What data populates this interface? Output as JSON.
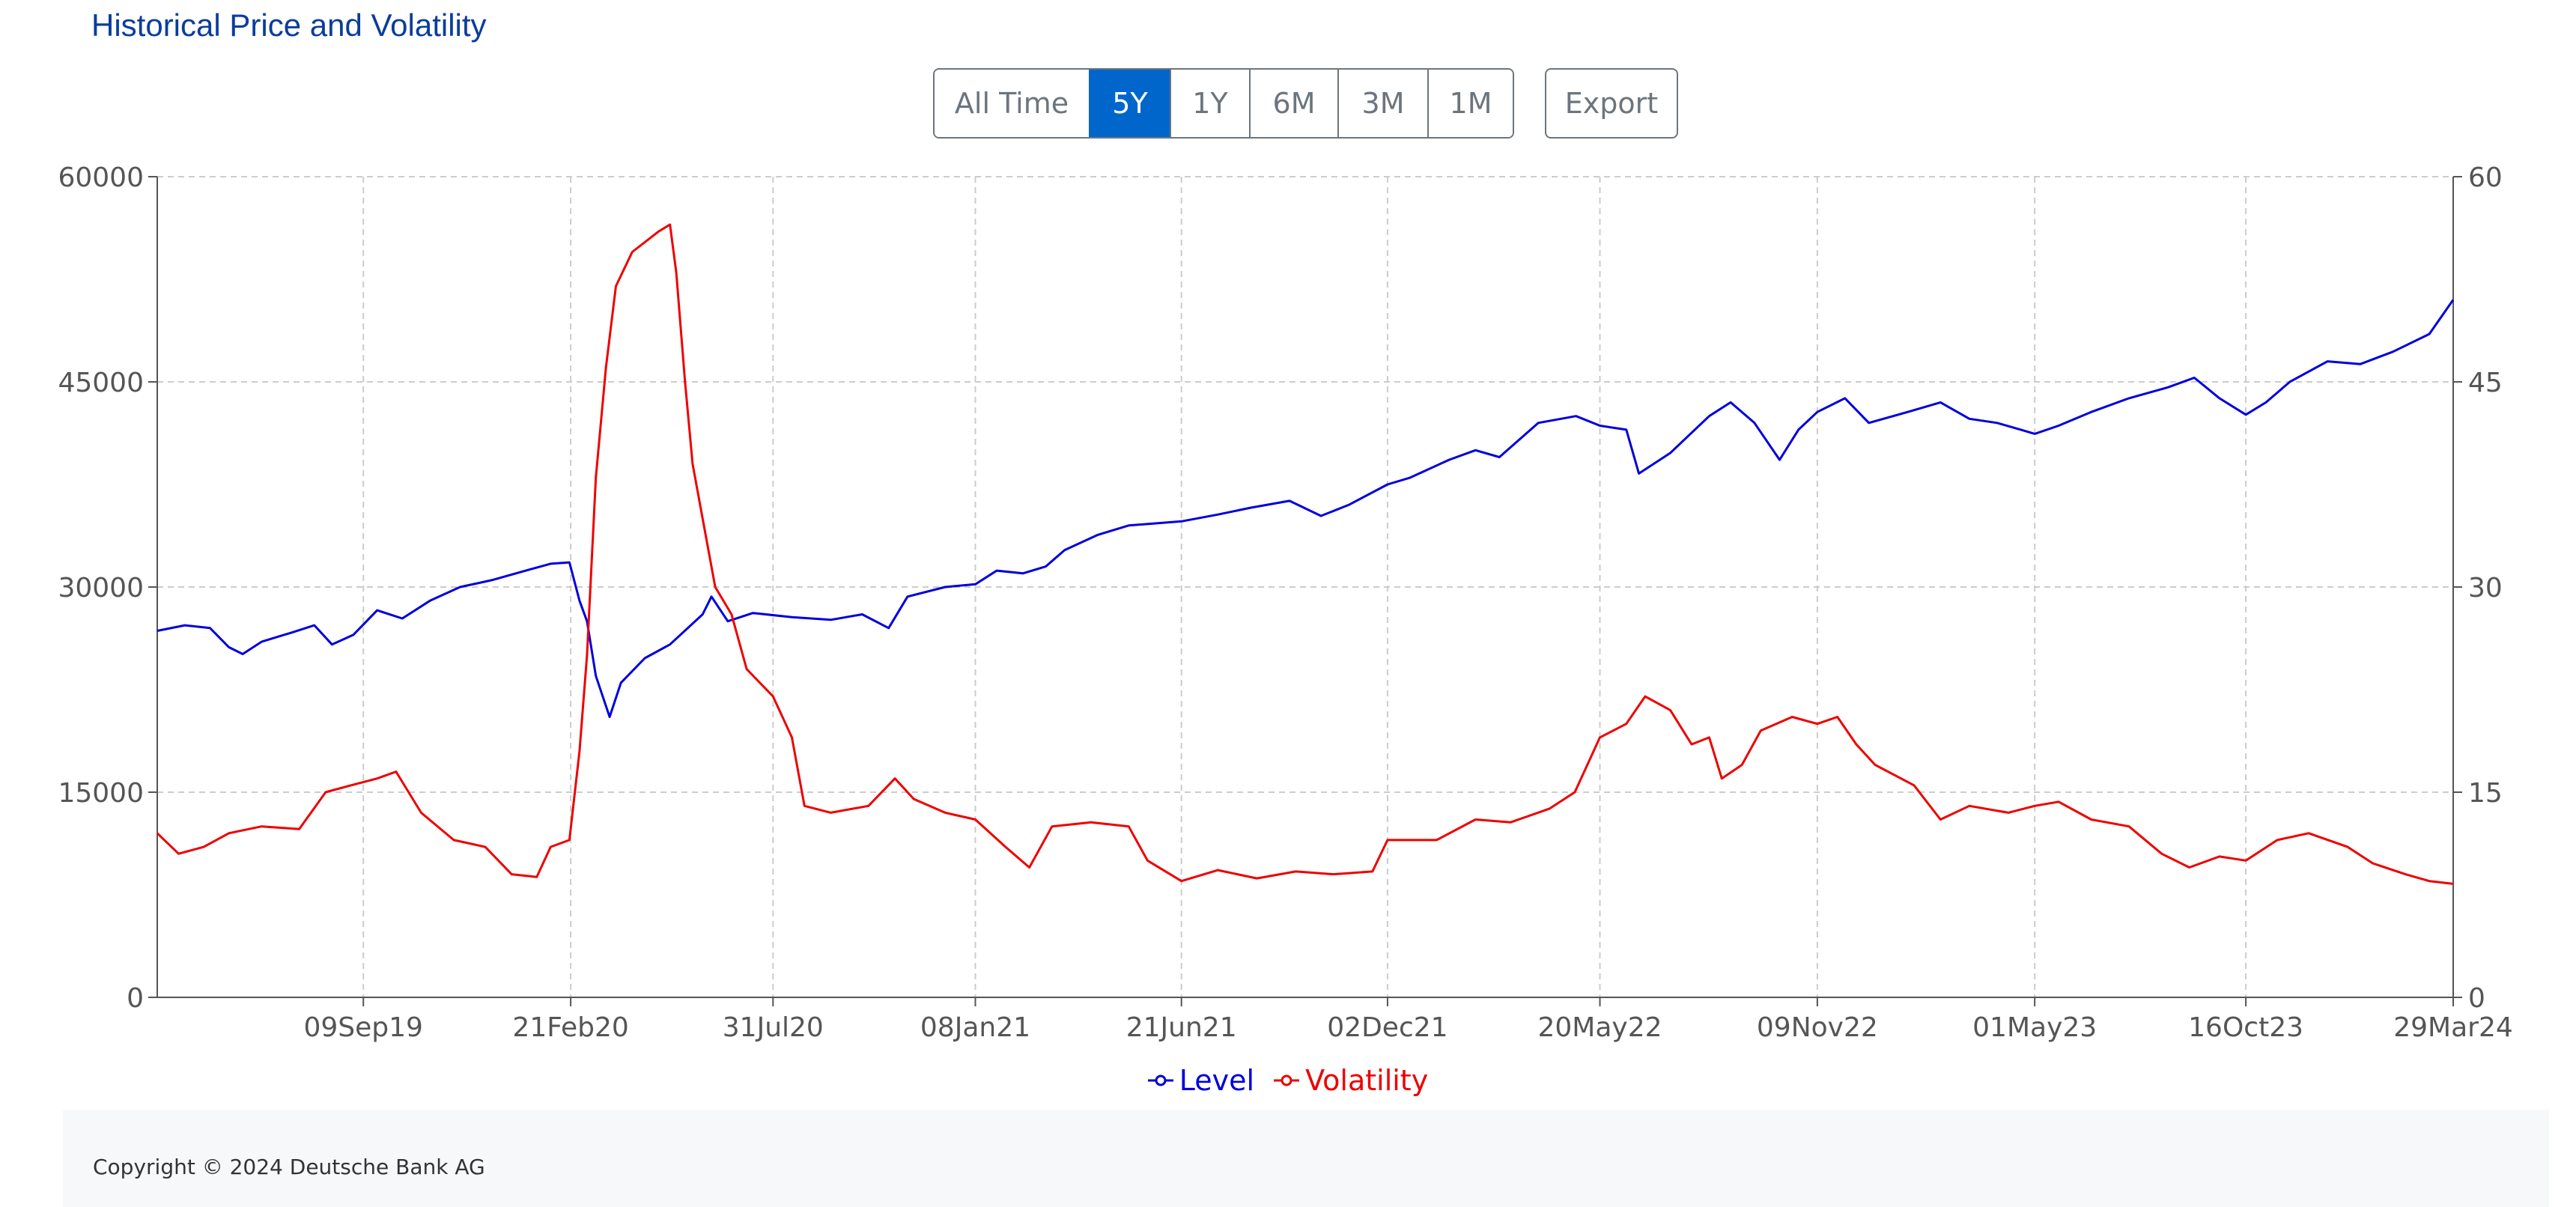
{
  "header": {
    "title": "Historical Price and Volatility"
  },
  "range_buttons": [
    {
      "label": "All Time",
      "active": false
    },
    {
      "label": "5Y",
      "active": true
    },
    {
      "label": "1Y",
      "active": false
    },
    {
      "label": "6M",
      "active": false
    },
    {
      "label": "3M",
      "active": false
    },
    {
      "label": "1M",
      "active": false
    }
  ],
  "export_label": "Export",
  "footer": {
    "copyright": "Copyright © 2024 Deutsche Bank AG"
  },
  "colors": {
    "level": "#0000dd",
    "volatility": "#ee0000",
    "grid": "#cccccc",
    "axis": "#555555",
    "active_button": "#0066cc"
  },
  "chart_data": {
    "type": "line",
    "title": "",
    "xlabel": "",
    "ylabel_left": "",
    "ylabel_right": "",
    "x_range": [
      "2019-03-29",
      "2024-03-29"
    ],
    "x_tick_labels": [
      "09Sep19",
      "21Feb20",
      "31Jul20",
      "08Jan21",
      "21Jun21",
      "02Dec21",
      "20May22",
      "09Nov22",
      "01May23",
      "16Oct23",
      "29Mar24"
    ],
    "x_tick_dates": [
      "2019-09-09",
      "2020-02-21",
      "2020-07-31",
      "2021-01-08",
      "2021-06-21",
      "2021-12-02",
      "2022-05-20",
      "2022-11-09",
      "2023-05-01",
      "2023-10-16",
      "2024-03-29"
    ],
    "y_left": {
      "range": [
        0,
        60000
      ],
      "ticks": [
        "0",
        "15000",
        "30000",
        "45000",
        "60000"
      ]
    },
    "y_right": {
      "range": [
        0,
        60
      ],
      "ticks": [
        "0",
        "15",
        "30",
        "45",
        "60"
      ]
    },
    "grid": true,
    "legend_position": "bottom-center",
    "series": [
      {
        "name": "Level",
        "axis": "left",
        "color": "#0000dd",
        "points": [
          [
            "2019-03-29",
            26800
          ],
          [
            "2019-04-20",
            27200
          ],
          [
            "2019-05-10",
            27000
          ],
          [
            "2019-05-25",
            25600
          ],
          [
            "2019-06-05",
            25100
          ],
          [
            "2019-06-20",
            26000
          ],
          [
            "2019-07-15",
            26700
          ],
          [
            "2019-08-01",
            27200
          ],
          [
            "2019-08-15",
            25800
          ],
          [
            "2019-09-01",
            26500
          ],
          [
            "2019-09-20",
            28300
          ],
          [
            "2019-10-10",
            27700
          ],
          [
            "2019-11-01",
            29000
          ],
          [
            "2019-11-25",
            30000
          ],
          [
            "2019-12-20",
            30500
          ],
          [
            "2020-01-20",
            31300
          ],
          [
            "2020-02-05",
            31700
          ],
          [
            "2020-02-20",
            31800
          ],
          [
            "2020-02-28",
            29000
          ],
          [
            "2020-03-05",
            27500
          ],
          [
            "2020-03-12",
            23500
          ],
          [
            "2020-03-23",
            20500
          ],
          [
            "2020-04-01",
            23000
          ],
          [
            "2020-04-20",
            24800
          ],
          [
            "2020-05-10",
            25800
          ],
          [
            "2020-06-05",
            28000
          ],
          [
            "2020-06-12",
            29300
          ],
          [
            "2020-06-25",
            27500
          ],
          [
            "2020-07-15",
            28100
          ],
          [
            "2020-08-15",
            27800
          ],
          [
            "2020-09-15",
            27600
          ],
          [
            "2020-10-10",
            28000
          ],
          [
            "2020-10-31",
            27000
          ],
          [
            "2020-11-15",
            29300
          ],
          [
            "2020-12-15",
            30000
          ],
          [
            "2021-01-08",
            30200
          ],
          [
            "2021-01-25",
            31200
          ],
          [
            "2021-02-15",
            31000
          ],
          [
            "2021-03-05",
            31500
          ],
          [
            "2021-03-20",
            32700
          ],
          [
            "2021-04-15",
            33800
          ],
          [
            "2021-05-10",
            34500
          ],
          [
            "2021-06-21",
            34800
          ],
          [
            "2021-07-20",
            35300
          ],
          [
            "2021-08-15",
            35800
          ],
          [
            "2021-09-15",
            36300
          ],
          [
            "2021-10-10",
            35200
          ],
          [
            "2021-11-01",
            36000
          ],
          [
            "2021-12-02",
            37500
          ],
          [
            "2021-12-20",
            38000
          ],
          [
            "2022-01-20",
            39300
          ],
          [
            "2022-02-10",
            40000
          ],
          [
            "2022-03-01",
            39500
          ],
          [
            "2022-04-01",
            42000
          ],
          [
            "2022-05-01",
            42500
          ],
          [
            "2022-05-20",
            41800
          ],
          [
            "2022-06-10",
            41500
          ],
          [
            "2022-06-20",
            38300
          ],
          [
            "2022-07-15",
            39800
          ],
          [
            "2022-08-15",
            42500
          ],
          [
            "2022-09-01",
            43500
          ],
          [
            "2022-09-20",
            42000
          ],
          [
            "2022-10-10",
            39300
          ],
          [
            "2022-10-25",
            41500
          ],
          [
            "2022-11-09",
            42800
          ],
          [
            "2022-12-01",
            43800
          ],
          [
            "2022-12-20",
            42000
          ],
          [
            "2023-01-20",
            42800
          ],
          [
            "2023-02-15",
            43500
          ],
          [
            "2023-03-10",
            42300
          ],
          [
            "2023-04-01",
            42000
          ],
          [
            "2023-04-20",
            41500
          ],
          [
            "2023-05-01",
            41200
          ],
          [
            "2023-05-20",
            41800
          ],
          [
            "2023-06-15",
            42800
          ],
          [
            "2023-07-15",
            43800
          ],
          [
            "2023-08-15",
            44600
          ],
          [
            "2023-09-05",
            45300
          ],
          [
            "2023-09-25",
            43800
          ],
          [
            "2023-10-16",
            42600
          ],
          [
            "2023-11-01",
            43500
          ],
          [
            "2023-11-20",
            45000
          ],
          [
            "2023-12-20",
            46500
          ],
          [
            "2024-01-15",
            46300
          ],
          [
            "2024-02-10",
            47200
          ],
          [
            "2024-03-10",
            48500
          ],
          [
            "2024-03-29",
            51000
          ]
        ]
      },
      {
        "name": "Volatility",
        "axis": "right",
        "color": "#ee0000",
        "points": [
          [
            "2019-03-29",
            12
          ],
          [
            "2019-04-15",
            10.5
          ],
          [
            "2019-05-05",
            11
          ],
          [
            "2019-05-25",
            12
          ],
          [
            "2019-06-20",
            12.5
          ],
          [
            "2019-07-20",
            12.3
          ],
          [
            "2019-08-10",
            15
          ],
          [
            "2019-08-30",
            15.5
          ],
          [
            "2019-09-20",
            16
          ],
          [
            "2019-10-05",
            16.5
          ],
          [
            "2019-10-25",
            13.5
          ],
          [
            "2019-11-20",
            11.5
          ],
          [
            "2019-12-15",
            11
          ],
          [
            "2020-01-05",
            9
          ],
          [
            "2020-01-25",
            8.8
          ],
          [
            "2020-02-05",
            11
          ],
          [
            "2020-02-20",
            11.5
          ],
          [
            "2020-02-28",
            18
          ],
          [
            "2020-03-05",
            25
          ],
          [
            "2020-03-12",
            38
          ],
          [
            "2020-03-20",
            46
          ],
          [
            "2020-03-28",
            52
          ],
          [
            "2020-04-10",
            54.5
          ],
          [
            "2020-05-01",
            56
          ],
          [
            "2020-05-10",
            56.5
          ],
          [
            "2020-05-15",
            53
          ],
          [
            "2020-05-22",
            45
          ],
          [
            "2020-05-28",
            39
          ],
          [
            "2020-06-05",
            35
          ],
          [
            "2020-06-15",
            30
          ],
          [
            "2020-06-28",
            28
          ],
          [
            "2020-07-10",
            24
          ],
          [
            "2020-07-31",
            22
          ],
          [
            "2020-08-15",
            19
          ],
          [
            "2020-08-25",
            14
          ],
          [
            "2020-09-15",
            13.5
          ],
          [
            "2020-10-15",
            14
          ],
          [
            "2020-11-05",
            16
          ],
          [
            "2020-11-20",
            14.5
          ],
          [
            "2020-12-15",
            13.5
          ],
          [
            "2021-01-08",
            13
          ],
          [
            "2021-02-01",
            11
          ],
          [
            "2021-02-20",
            9.5
          ],
          [
            "2021-03-10",
            12.5
          ],
          [
            "2021-04-10",
            12.8
          ],
          [
            "2021-05-10",
            12.5
          ],
          [
            "2021-05-25",
            10
          ],
          [
            "2021-06-21",
            8.5
          ],
          [
            "2021-07-20",
            9.3
          ],
          [
            "2021-08-20",
            8.7
          ],
          [
            "2021-09-20",
            9.2
          ],
          [
            "2021-10-20",
            9
          ],
          [
            "2021-11-20",
            9.2
          ],
          [
            "2021-12-02",
            11.5
          ],
          [
            "2022-01-10",
            11.5
          ],
          [
            "2022-02-10",
            13
          ],
          [
            "2022-03-10",
            12.8
          ],
          [
            "2022-04-10",
            13.8
          ],
          [
            "2022-04-30",
            15
          ],
          [
            "2022-05-20",
            19
          ],
          [
            "2022-06-10",
            20
          ],
          [
            "2022-06-25",
            22
          ],
          [
            "2022-07-15",
            21
          ],
          [
            "2022-08-01",
            18.5
          ],
          [
            "2022-08-15",
            19
          ],
          [
            "2022-08-25",
            16
          ],
          [
            "2022-09-10",
            17
          ],
          [
            "2022-09-25",
            19.5
          ],
          [
            "2022-10-20",
            20.5
          ],
          [
            "2022-11-09",
            20
          ],
          [
            "2022-11-25",
            20.5
          ],
          [
            "2022-12-10",
            18.5
          ],
          [
            "2022-12-25",
            17
          ],
          [
            "2023-01-25",
            15.5
          ],
          [
            "2023-02-15",
            13
          ],
          [
            "2023-03-10",
            14
          ],
          [
            "2023-04-10",
            13.5
          ],
          [
            "2023-05-01",
            14
          ],
          [
            "2023-05-20",
            14.3
          ],
          [
            "2023-06-15",
            13
          ],
          [
            "2023-07-15",
            12.5
          ],
          [
            "2023-08-10",
            10.5
          ],
          [
            "2023-09-01",
            9.5
          ],
          [
            "2023-09-25",
            10.3
          ],
          [
            "2023-10-16",
            10
          ],
          [
            "2023-11-10",
            11.5
          ],
          [
            "2023-12-05",
            12
          ],
          [
            "2024-01-05",
            11
          ],
          [
            "2024-01-25",
            9.8
          ],
          [
            "2024-02-20",
            9
          ],
          [
            "2024-03-10",
            8.5
          ],
          [
            "2024-03-29",
            8.3
          ]
        ]
      }
    ]
  }
}
